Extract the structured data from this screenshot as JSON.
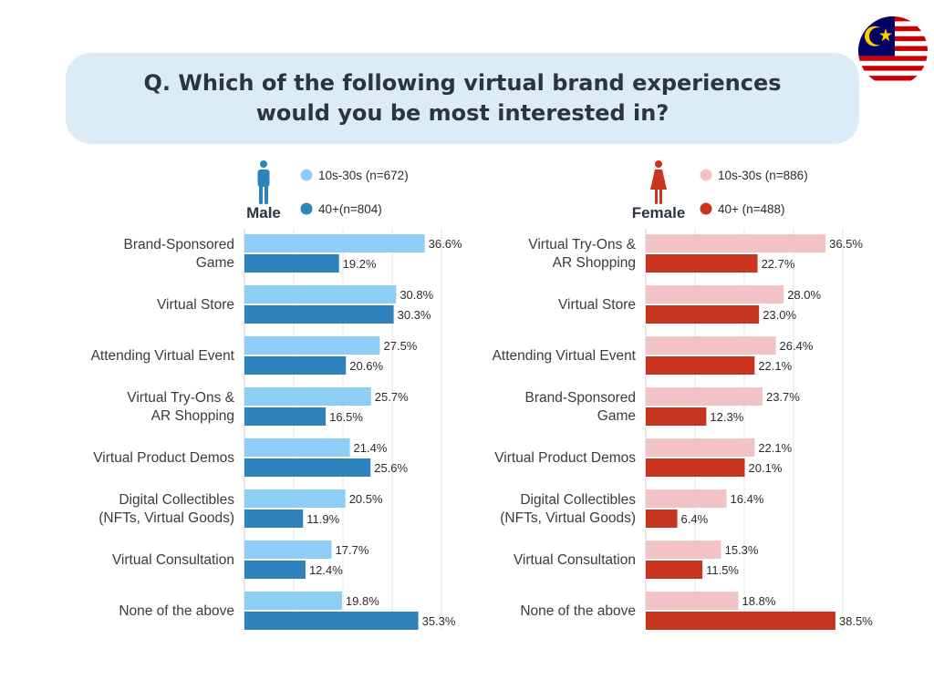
{
  "question": "Q. Which of the following virtual brand experiences would you be most interested in?",
  "colors": {
    "male_young": "#8ecdf5",
    "male_old": "#2f83bd",
    "female_young": "#f2c3c5",
    "female_old": "#c9341f",
    "banner": "#dcecf7"
  },
  "icons": [
    "malaysia-flag-icon",
    "male-person-icon",
    "female-person-icon"
  ],
  "chart_data": [
    {
      "type": "bar",
      "orientation": "horizontal",
      "gender_label": "Male",
      "categories": [
        [
          "Brand-Sponsored",
          "Game"
        ],
        [
          "Virtual Store"
        ],
        [
          "Attending Virtual Event"
        ],
        [
          "Virtual Try-Ons &",
          "AR Shopping"
        ],
        [
          "Virtual Product Demos"
        ],
        [
          "Digital Collectibles",
          "(NFTs, Virtual Goods)"
        ],
        [
          "Virtual Consultation"
        ],
        [
          "None of the above"
        ]
      ],
      "series": [
        {
          "name": "10s-30s (n=672)",
          "values": [
            36.6,
            30.8,
            27.5,
            25.7,
            21.4,
            20.5,
            17.7,
            19.8
          ],
          "labels": [
            "36.6%",
            "30.8%",
            "27.5%",
            "25.7%",
            "21.4%",
            "20.5%",
            "17.7%",
            "19.8%"
          ]
        },
        {
          "name": "40+(n=804)",
          "values": [
            19.2,
            30.3,
            20.6,
            16.5,
            25.6,
            11.9,
            12.4,
            35.3
          ],
          "labels": [
            "19.2%",
            "30.3%",
            "20.6%",
            "16.5%",
            "25.6%",
            "11.9%",
            "12.4%",
            "35.3%"
          ]
        }
      ],
      "xlim": [
        0,
        40
      ],
      "grid": true,
      "legend": "top"
    },
    {
      "type": "bar",
      "orientation": "horizontal",
      "gender_label": "Female",
      "categories": [
        [
          "Virtual Try-Ons &",
          "AR Shopping"
        ],
        [
          "Virtual Store"
        ],
        [
          "Attending Virtual Event"
        ],
        [
          "Brand-Sponsored",
          "Game"
        ],
        [
          "Virtual Product Demos"
        ],
        [
          "Digital Collectibles",
          "(NFTs, Virtual Goods)"
        ],
        [
          "Virtual Consultation"
        ],
        [
          "None of the above"
        ]
      ],
      "series": [
        {
          "name": "10s-30s (n=886)",
          "values": [
            36.5,
            28.0,
            26.4,
            23.7,
            22.1,
            16.4,
            15.3,
            18.8
          ],
          "labels": [
            "36.5%",
            "28.0%",
            "26.4%",
            "23.7%",
            "22.1%",
            "16.4%",
            "15.3%",
            "18.8%"
          ]
        },
        {
          "name": "40+ (n=488)",
          "values": [
            22.7,
            23.0,
            22.1,
            12.3,
            20.1,
            6.4,
            11.5,
            38.5
          ],
          "labels": [
            "22.7%",
            "23.0%",
            "22.1%",
            "12.3%",
            "20.1%",
            "6.4%",
            "11.5%",
            "38.5%"
          ]
        }
      ],
      "xlim": [
        0,
        40
      ],
      "grid": true,
      "legend": "top"
    }
  ]
}
